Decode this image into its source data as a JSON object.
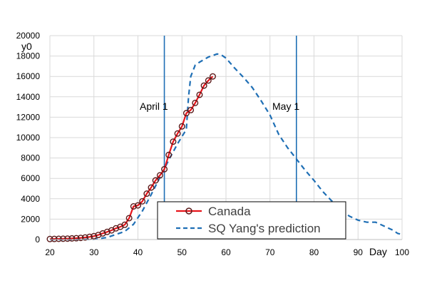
{
  "chart_data": {
    "type": "line",
    "title": "",
    "xlabel": "Day",
    "ylabel": "y0",
    "xlim": [
      20,
      100
    ],
    "ylim": [
      0,
      20000
    ],
    "x_ticks": [
      20,
      30,
      40,
      50,
      60,
      70,
      80,
      90,
      100
    ],
    "y_ticks": [
      0,
      2000,
      4000,
      6000,
      8000,
      10000,
      12000,
      14000,
      16000,
      18000,
      20000
    ],
    "grid": true,
    "legend_position": "bottom-center",
    "vertical_lines": [
      {
        "x": 46,
        "label": "April 1"
      },
      {
        "x": 76,
        "label": "May 1"
      }
    ],
    "series": [
      {
        "name": "Canada",
        "style": "solid-with-circles",
        "color": "#e8141b",
        "marker_color": "#5a1a1a",
        "x": [
          20,
          21,
          22,
          23,
          24,
          25,
          26,
          27,
          28,
          29,
          30,
          31,
          32,
          33,
          34,
          35,
          36,
          37,
          38,
          39,
          40,
          41,
          42,
          43,
          44,
          45,
          46,
          47,
          48,
          49,
          50,
          51,
          52,
          53,
          54,
          55,
          56,
          57
        ],
        "y": [
          50,
          60,
          70,
          80,
          90,
          110,
          130,
          160,
          200,
          260,
          330,
          450,
          600,
          750,
          900,
          1100,
          1250,
          1450,
          2100,
          3250,
          3350,
          3750,
          4500,
          5100,
          5800,
          6300,
          6900,
          8300,
          9600,
          10400,
          11100,
          12400,
          12700,
          13400,
          14200,
          15100,
          15600,
          16000
        ]
      },
      {
        "name": "SQ Yang's prediction",
        "style": "dashed",
        "color": "#1f6fb5",
        "x": [
          20,
          25,
          30,
          33,
          35,
          37,
          39,
          41,
          43,
          45,
          47,
          49,
          51,
          51.5,
          52,
          53,
          54,
          56,
          58,
          59,
          60,
          62,
          64,
          66,
          68,
          70,
          72,
          74,
          76,
          78,
          80,
          82,
          84,
          86,
          88,
          90,
          92,
          94,
          96,
          98,
          99,
          100
        ],
        "y": [
          0,
          0,
          20,
          200,
          500,
          800,
          1500,
          2800,
          4400,
          6100,
          7800,
          9400,
          10800,
          14000,
          16000,
          17100,
          17400,
          17900,
          18200,
          18100,
          17800,
          16800,
          15900,
          14900,
          13600,
          12200,
          10300,
          9000,
          7900,
          6800,
          5800,
          4700,
          3800,
          3000,
          2300,
          1900,
          1700,
          1700,
          1300,
          900,
          600,
          500
        ]
      }
    ]
  }
}
